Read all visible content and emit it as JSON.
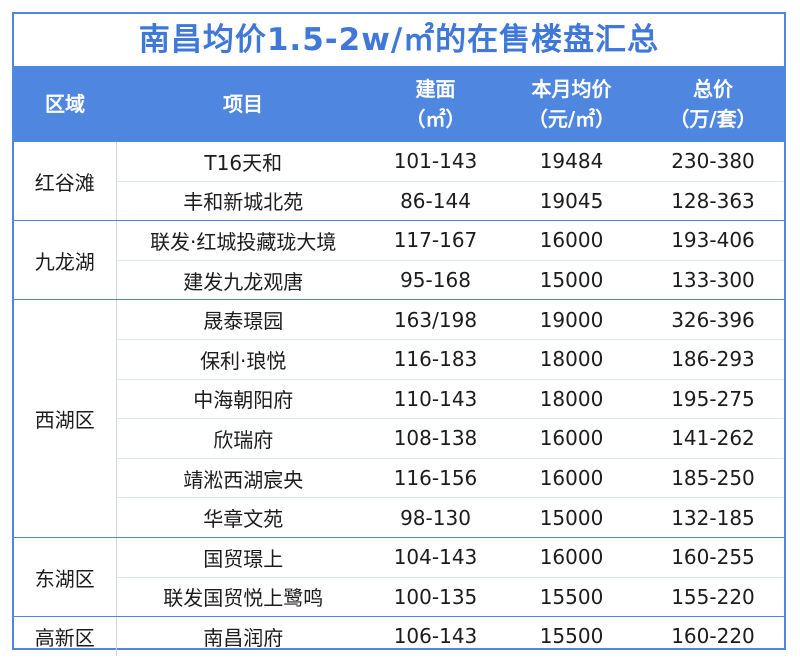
{
  "title": "南昌均价1.5-2w/㎡的在售楼盘汇总",
  "headers": {
    "region": "区域",
    "project": "项目",
    "area_line1": "建面",
    "area_line2": "（㎡）",
    "price_line1": "本月均价",
    "price_line2": "（元/㎡）",
    "total_line1": "总价",
    "total_line2": "（万/套）"
  },
  "regions": [
    "红谷滩",
    "九龙湖",
    "西湖区",
    "东湖区",
    "高新区"
  ],
  "rows": [
    {
      "project": "T16天和",
      "area": "101-143",
      "price": "19484",
      "total": "230-380"
    },
    {
      "project": "丰和新城北苑",
      "area": "86-144",
      "price": "19045",
      "total": "128-363"
    },
    {
      "project": "联发·红城投藏珑大境",
      "area": "117-167",
      "price": "16000",
      "total": "193-406"
    },
    {
      "project": "建发九龙观唐",
      "area": "95-168",
      "price": "15000",
      "total": "133-300"
    },
    {
      "project": "晟泰璟园",
      "area": "163/198",
      "price": "19000",
      "total": "326-396"
    },
    {
      "project": "保利·琅悦",
      "area": "116-183",
      "price": "18000",
      "total": "186-293"
    },
    {
      "project": "中海朝阳府",
      "area": "110-143",
      "price": "18000",
      "total": "195-275"
    },
    {
      "project": "欣瑞府",
      "area": "108-138",
      "price": "16000",
      "total": "141-262"
    },
    {
      "project": "靖淞西湖宸央",
      "area": "116-156",
      "price": "16000",
      "total": "185-250"
    },
    {
      "project": "华章文苑",
      "area": "98-130",
      "price": "15000",
      "total": "132-185"
    },
    {
      "project": "国贸璟上",
      "area": "104-143",
      "price": "16000",
      "total": "160-255"
    },
    {
      "project": "联发国贸悦上鹭鸣",
      "area": "100-135",
      "price": "15500",
      "total": "155-220"
    },
    {
      "project": "南昌润府",
      "area": "106-143",
      "price": "15500",
      "total": "160-220"
    }
  ]
}
